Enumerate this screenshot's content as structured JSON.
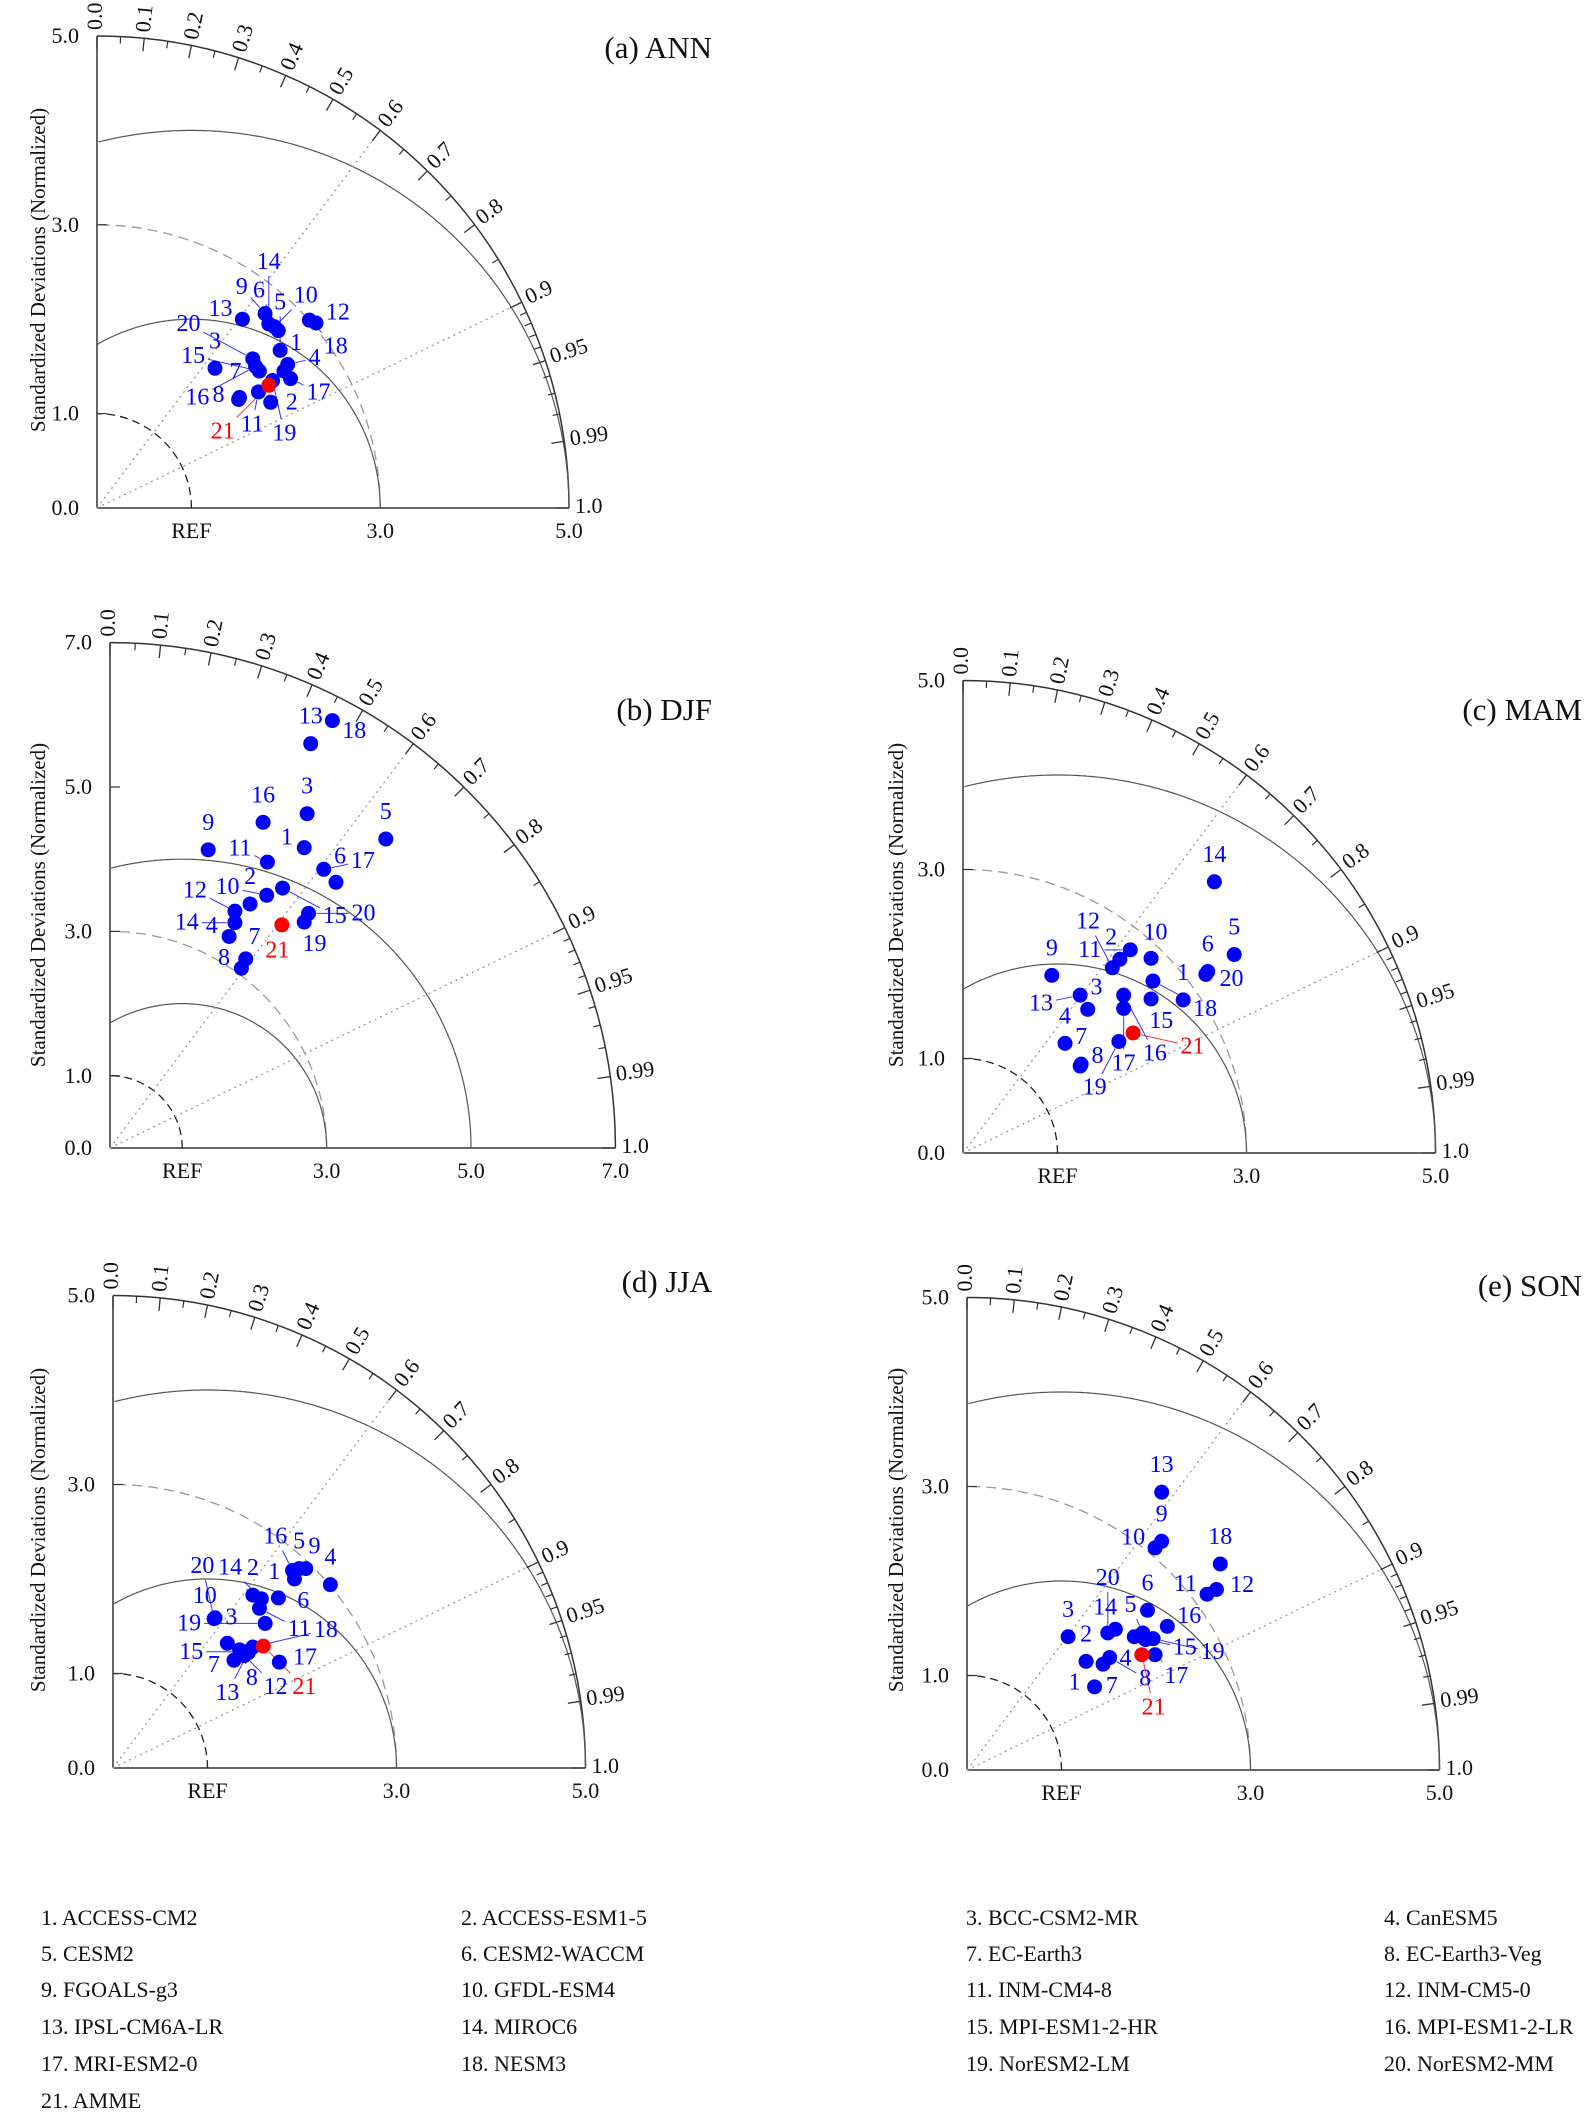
{
  "y_axis_label": "Standardized Deviations (Normalized)",
  "ref_label": "REF",
  "colors": {
    "models": "#0000ff",
    "mme": "#ff0000",
    "axes": "#333333",
    "grid": "#999999"
  },
  "legend": [
    "1. ACCESS-CM2",
    "2. ACCESS-ESM1-5",
    "3. BCC-CSM2-MR",
    "4. CanESM5",
    "5. CESM2",
    "6. CESM2-WACCM",
    "7. EC-Earth3",
    "8. EC-Earth3-Veg",
    "9. FGOALS-g3",
    "10. GFDL-ESM4",
    "11. INM-CM4-8",
    "12. INM-CM5-0",
    "13. IPSL-CM6A-LR",
    "14. MIROC6",
    "15. MPI-ESM1-2-HR",
    "16. MPI-ESM1-2-LR",
    "17. MRI-ESM2-0",
    "18. NESM3",
    "19. NorESM2-LM",
    "20. NorESM2-MM",
    "21. AMME"
  ],
  "chart_data": [
    {
      "type": "scatter",
      "subtype": "taylor-diagram",
      "title": "(a) ANN",
      "ylabel": "Standardized Deviations (Normalized)",
      "std_max": 5,
      "y_tick_labels": [
        "0.0",
        "1.0",
        "3.0",
        "5.0"
      ],
      "y_ticks": [
        0,
        1,
        3,
        5
      ],
      "x_tick_labels": [
        "REF",
        "3.0",
        "5.0"
      ],
      "x_ticks": [
        1,
        3,
        5
      ],
      "corr_tick_labels": [
        "0.0",
        "0.1",
        "0.2",
        "0.3",
        "0.4",
        "0.5",
        "0.6",
        "0.7",
        "0.8",
        "0.9",
        "0.95",
        "0.99",
        "1.0"
      ],
      "rms_circles": [
        2,
        4
      ],
      "std_circles": [
        1,
        3
      ],
      "points": [
        [
          "1",
          1.98,
          1.45
        ],
        [
          "2",
          1.84,
          1.12
        ],
        [
          "3",
          1.25,
          1.48
        ],
        [
          "4",
          2.02,
          1.52
        ],
        [
          "5",
          1.94,
          1.67
        ],
        [
          "6",
          1.92,
          1.88
        ],
        [
          "7",
          1.51,
          1.17
        ],
        [
          "8",
          1.5,
          1.15
        ],
        [
          "9",
          1.78,
          2.06
        ],
        [
          "10",
          1.88,
          1.92
        ],
        [
          "11",
          1.71,
          1.23
        ],
        [
          "12",
          2.32,
          1.96
        ],
        [
          "13",
          1.54,
          2.0
        ],
        [
          "14",
          1.82,
          1.95
        ],
        [
          "15",
          1.72,
          1.45
        ],
        [
          "16",
          1.68,
          1.5
        ],
        [
          "17",
          2.05,
          1.37
        ],
        [
          "18",
          2.25,
          1.99
        ],
        [
          "19",
          1.86,
          1.35
        ],
        [
          "20",
          1.65,
          1.58
        ],
        [
          "21",
          1.82,
          1.3
        ]
      ]
    },
    {
      "type": "scatter",
      "subtype": "taylor-diagram",
      "title": "(b) DJF",
      "ylabel": "Standardized Deviations (Normalized)",
      "std_max": 7,
      "y_tick_labels": [
        "0.0",
        "1.0",
        "3.0",
        "5.0",
        "7.0"
      ],
      "y_ticks": [
        0,
        1,
        3,
        5,
        7
      ],
      "x_tick_labels": [
        "REF",
        "3.0",
        "5.0",
        "7.0"
      ],
      "x_ticks": [
        1,
        3,
        5,
        7
      ],
      "corr_tick_labels": [
        "0.0",
        "0.1",
        "0.2",
        "0.3",
        "0.4",
        "0.5",
        "0.6",
        "0.7",
        "0.8",
        "0.9",
        "0.95",
        "0.99",
        "1.0"
      ],
      "rms_circles": [
        2,
        4
      ],
      "std_circles": [
        1,
        3
      ],
      "points": [
        [
          "1",
          2.69,
          4.16
        ],
        [
          "2",
          1.94,
          3.38
        ],
        [
          "3",
          2.73,
          4.63
        ],
        [
          "4",
          1.65,
          2.93
        ],
        [
          "5",
          3.82,
          4.28
        ],
        [
          "6",
          3.13,
          3.68
        ],
        [
          "7",
          1.88,
          2.62
        ],
        [
          "8",
          1.82,
          2.49
        ],
        [
          "9",
          1.36,
          4.13
        ],
        [
          "10",
          2.17,
          3.5
        ],
        [
          "11",
          2.18,
          3.96
        ],
        [
          "12",
          1.73,
          3.28
        ],
        [
          "13",
          2.78,
          5.6
        ],
        [
          "14",
          1.73,
          3.12
        ],
        [
          "15",
          2.39,
          3.6
        ],
        [
          "16",
          2.12,
          4.51
        ],
        [
          "17",
          2.96,
          3.86
        ],
        [
          "18",
          3.08,
          5.92
        ],
        [
          "19",
          2.69,
          3.13
        ],
        [
          "20",
          2.75,
          3.25
        ],
        [
          "21",
          2.38,
          3.09
        ]
      ]
    },
    {
      "type": "scatter",
      "subtype": "taylor-diagram",
      "title": "(c) MAM",
      "ylabel": "Standardized Deviations (Normalized)",
      "std_max": 5,
      "y_tick_labels": [
        "0.0",
        "1.0",
        "3.0",
        "5.0"
      ],
      "y_ticks": [
        0,
        1,
        3,
        5
      ],
      "x_tick_labels": [
        "REF",
        "3.0",
        "5.0"
      ],
      "x_ticks": [
        1,
        3,
        5
      ],
      "corr_tick_labels": [
        "0.0",
        "0.1",
        "0.2",
        "0.3",
        "0.4",
        "0.5",
        "0.6",
        "0.7",
        "0.8",
        "0.9",
        "0.95",
        "0.99",
        "1.0"
      ],
      "rms_circles": [
        2,
        4
      ],
      "std_circles": [
        1,
        3
      ],
      "points": [
        [
          "1",
          2.33,
          1.62
        ],
        [
          "2",
          1.66,
          2.05
        ],
        [
          "3",
          1.32,
          1.52
        ],
        [
          "4",
          1.08,
          1.16
        ],
        [
          "5",
          2.87,
          2.1
        ],
        [
          "6",
          2.59,
          1.92
        ],
        [
          "7",
          1.25,
          0.94
        ],
        [
          "8",
          1.24,
          0.92
        ],
        [
          "9",
          0.94,
          1.88
        ],
        [
          "10",
          1.99,
          2.06
        ],
        [
          "11",
          1.77,
          2.15
        ],
        [
          "12",
          1.58,
          1.96
        ],
        [
          "13",
          1.24,
          1.67
        ],
        [
          "14",
          2.66,
          2.87
        ],
        [
          "15",
          1.99,
          1.63
        ],
        [
          "16",
          1.7,
          1.67
        ],
        [
          "17",
          1.7,
          1.53
        ],
        [
          "18",
          2.01,
          1.82
        ],
        [
          "19",
          1.65,
          1.18
        ],
        [
          "20",
          2.57,
          1.89
        ],
        [
          "21",
          1.8,
          1.27
        ]
      ]
    },
    {
      "type": "scatter",
      "subtype": "taylor-diagram",
      "title": "(d) JJA",
      "ylabel": "Standardized Deviations (Normalized)",
      "std_max": 5,
      "y_tick_labels": [
        "0.0",
        "1.0",
        "3.0",
        "5.0"
      ],
      "y_ticks": [
        0,
        1,
        3,
        5
      ],
      "x_tick_labels": [
        "REF",
        "3.0",
        "5.0"
      ],
      "x_ticks": [
        1,
        3,
        5
      ],
      "corr_tick_labels": [
        "0.0",
        "0.1",
        "0.2",
        "0.3",
        "0.4",
        "0.5",
        "0.6",
        "0.7",
        "0.8",
        "0.9",
        "0.95",
        "0.99",
        "1.0"
      ],
      "rms_circles": [
        2,
        4
      ],
      "std_circles": [
        1,
        3
      ],
      "points": [
        [
          "1",
          1.75,
          1.8
        ],
        [
          "2",
          1.48,
          1.83
        ],
        [
          "3",
          1.21,
          1.32
        ],
        [
          "4",
          2.3,
          1.94
        ],
        [
          "5",
          1.97,
          2.11
        ],
        [
          "6",
          1.92,
          2.0
        ],
        [
          "7",
          1.28,
          1.14
        ],
        [
          "8",
          1.34,
          1.25
        ],
        [
          "9",
          2.04,
          2.11
        ],
        [
          "10",
          1.08,
          1.59
        ],
        [
          "11",
          1.55,
          1.69
        ],
        [
          "12",
          1.39,
          1.19
        ],
        [
          "13",
          1.43,
          1.22
        ],
        [
          "14",
          1.57,
          1.79
        ],
        [
          "15",
          1.41,
          1.23
        ],
        [
          "16",
          1.9,
          2.09
        ],
        [
          "17",
          1.76,
          1.12
        ],
        [
          "18",
          1.48,
          1.28
        ],
        [
          "19",
          1.61,
          1.53
        ],
        [
          "20",
          1.07,
          1.58
        ],
        [
          "21",
          1.59,
          1.29
        ]
      ]
    },
    {
      "type": "scatter",
      "subtype": "taylor-diagram",
      "title": "(e) SON",
      "ylabel": "Standardized Deviations (Normalized)",
      "std_max": 5,
      "y_tick_labels": [
        "0.0",
        "1.0",
        "3.0",
        "5.0"
      ],
      "y_ticks": [
        0,
        1,
        3,
        5
      ],
      "x_tick_labels": [
        "REF",
        "3.0",
        "5.0"
      ],
      "x_ticks": [
        1,
        3,
        5
      ],
      "corr_tick_labels": [
        "0.0",
        "0.1",
        "0.2",
        "0.3",
        "0.4",
        "0.5",
        "0.6",
        "0.7",
        "0.8",
        "0.9",
        "0.95",
        "0.99",
        "1.0"
      ],
      "rms_circles": [
        2,
        4
      ],
      "std_circles": [
        1,
        3
      ],
      "points": [
        [
          "1",
          1.35,
          0.88
        ],
        [
          "2",
          1.26,
          1.15
        ],
        [
          "3",
          1.07,
          1.41
        ],
        [
          "4",
          1.77,
          1.41
        ],
        [
          "5",
          1.86,
          1.45
        ],
        [
          "6",
          1.91,
          1.69
        ],
        [
          "7",
          1.44,
          1.12
        ],
        [
          "8",
          1.51,
          1.19
        ],
        [
          "9",
          2.06,
          2.42
        ],
        [
          "10",
          1.99,
          2.35
        ],
        [
          "11",
          2.54,
          1.86
        ],
        [
          "12",
          2.64,
          1.91
        ],
        [
          "13",
          2.06,
          2.94
        ],
        [
          "14",
          1.57,
          1.49
        ],
        [
          "15",
          1.89,
          1.38
        ],
        [
          "16",
          2.12,
          1.52
        ],
        [
          "17",
          1.99,
          1.22
        ],
        [
          "18",
          2.68,
          2.18
        ],
        [
          "19",
          1.97,
          1.39
        ],
        [
          "20",
          1.49,
          1.45
        ],
        [
          "21",
          1.85,
          1.22
        ]
      ]
    }
  ]
}
